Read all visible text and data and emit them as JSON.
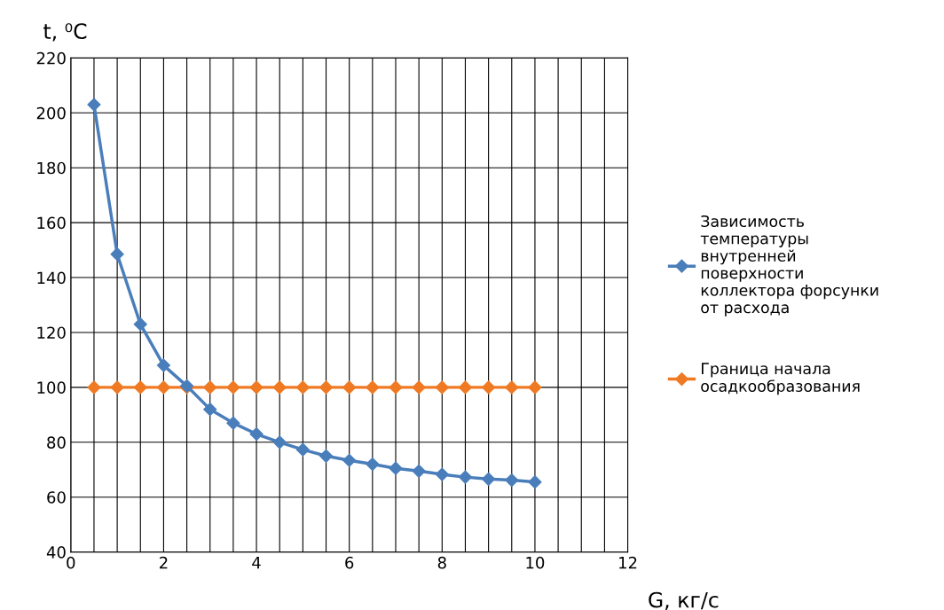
{
  "chart_data": {
    "type": "line",
    "xlabel": "G, кг/с",
    "ylabel": "t, ⁰C",
    "x": [
      0.5,
      1,
      1.5,
      2,
      2.5,
      3,
      3.5,
      4,
      4.5,
      5,
      5.5,
      6,
      6.5,
      7,
      7.5,
      8,
      8.5,
      9,
      9.5,
      10
    ],
    "series": [
      {
        "name": "Зависимость температуры внутренней поверхности коллектора форсунки от расхода",
        "color": "#4a7ebb",
        "values": [
          203,
          148.5,
          123,
          108,
          100.5,
          92,
          87,
          83,
          80,
          77.3,
          75,
          73.4,
          72,
          70.5,
          69.5,
          68.3,
          67.3,
          66.6,
          66.2,
          65.5
        ]
      },
      {
        "name": "Граница начала осадкообразования",
        "color": "#f07a23",
        "values": [
          100,
          100,
          100,
          100,
          100,
          100,
          100,
          100,
          100,
          100,
          100,
          100,
          100,
          100,
          100,
          100,
          100,
          100,
          100,
          100
        ]
      }
    ],
    "xlim": [
      0,
      12
    ],
    "xticks": [
      0,
      {
        "value": 0.5,
        "label": null
      },
      {
        "value": 1,
        "label": null
      },
      {
        "value": 1.5,
        "label": null
      },
      2,
      {
        "value": 2.5,
        "label": null
      },
      {
        "value": 3,
        "label": null
      },
      {
        "value": 3.5,
        "label": null
      },
      4,
      {
        "value": 4.5,
        "label": null
      },
      {
        "value": 5,
        "label": null
      },
      {
        "value": 5.5,
        "label": null
      },
      6,
      {
        "value": 6.5,
        "label": null
      },
      {
        "value": 7,
        "label": null
      },
      {
        "value": 7.5,
        "label": null
      },
      8,
      {
        "value": 8.5,
        "label": null
      },
      {
        "value": 9,
        "label": null
      },
      {
        "value": 9.5,
        "label": null
      },
      10,
      {
        "value": 10.5,
        "label": null
      },
      {
        "value": 11,
        "label": null
      },
      {
        "value": 11.5,
        "label": null
      },
      12
    ],
    "ylim": [
      40,
      220
    ],
    "yticks": [
      40,
      60,
      80,
      100,
      120,
      140,
      160,
      180,
      200,
      220
    ],
    "grid": true,
    "legend": "right",
    "marker": "diamond",
    "line_style": "solid"
  }
}
